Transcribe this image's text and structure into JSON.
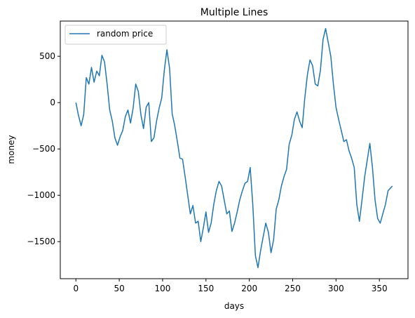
{
  "chart_data": {
    "type": "line",
    "title": "Multiple Lines",
    "xlabel": "days",
    "ylabel": "money",
    "xlim": [
      -18,
      383
    ],
    "ylim": [
      -1900,
      880
    ],
    "xticks": [
      0,
      50,
      100,
      150,
      200,
      250,
      300,
      350
    ],
    "yticks": [
      500,
      0,
      -500,
      -1000,
      -1500
    ],
    "ytick_labels": [
      "500",
      "0",
      "−500",
      "−1000",
      "−1500"
    ],
    "grid": false,
    "legend_position": "upper-left",
    "line_color": "#1f77b4",
    "series": [
      {
        "name": "random price",
        "x": [
          0,
          3,
          6,
          9,
          12,
          15,
          18,
          21,
          24,
          27,
          30,
          33,
          36,
          39,
          42,
          45,
          48,
          51,
          54,
          57,
          60,
          63,
          66,
          69,
          72,
          75,
          78,
          81,
          84,
          87,
          90,
          93,
          96,
          99,
          102,
          105,
          108,
          111,
          114,
          117,
          120,
          123,
          126,
          129,
          132,
          135,
          138,
          141,
          144,
          147,
          150,
          153,
          156,
          159,
          162,
          165,
          168,
          171,
          174,
          177,
          180,
          183,
          186,
          189,
          192,
          195,
          198,
          201,
          204,
          207,
          210,
          213,
          216,
          219,
          222,
          225,
          228,
          231,
          234,
          237,
          240,
          243,
          246,
          249,
          252,
          255,
          258,
          261,
          264,
          267,
          270,
          273,
          276,
          279,
          282,
          285,
          288,
          291,
          294,
          297,
          300,
          303,
          306,
          309,
          312,
          315,
          318,
          321,
          324,
          327,
          330,
          333,
          336,
          339,
          342,
          345,
          348,
          351,
          354,
          357,
          360,
          363,
          365
        ],
        "values": [
          0,
          -140,
          -250,
          -130,
          270,
          200,
          380,
          220,
          340,
          290,
          510,
          440,
          200,
          -80,
          -200,
          -380,
          -460,
          -370,
          -300,
          -150,
          -80,
          -220,
          -60,
          200,
          120,
          -130,
          -280,
          -50,
          0,
          -420,
          -380,
          -200,
          -60,
          50,
          350,
          570,
          370,
          -120,
          -250,
          -420,
          -600,
          -610,
          -800,
          -1000,
          -1200,
          -1110,
          -1300,
          -1280,
          -1500,
          -1350,
          -1180,
          -1400,
          -1300,
          -1100,
          -950,
          -850,
          -900,
          -1050,
          -1200,
          -1170,
          -1390,
          -1300,
          -1180,
          -1050,
          -950,
          -870,
          -850,
          -700,
          -1100,
          -1650,
          -1780,
          -1600,
          -1450,
          -1300,
          -1400,
          -1620,
          -1480,
          -1150,
          -1050,
          -900,
          -800,
          -720,
          -450,
          -350,
          -180,
          -100,
          -200,
          -270,
          50,
          300,
          460,
          400,
          200,
          180,
          350,
          680,
          800,
          650,
          500,
          200,
          -50,
          -180,
          -300,
          -420,
          -400,
          -520,
          -600,
          -700,
          -1100,
          -1280,
          -1050,
          -800,
          -620,
          -440,
          -700,
          -1050,
          -1250,
          -1300,
          -1200,
          -1100,
          -950,
          -920,
          -900
        ]
      }
    ]
  }
}
